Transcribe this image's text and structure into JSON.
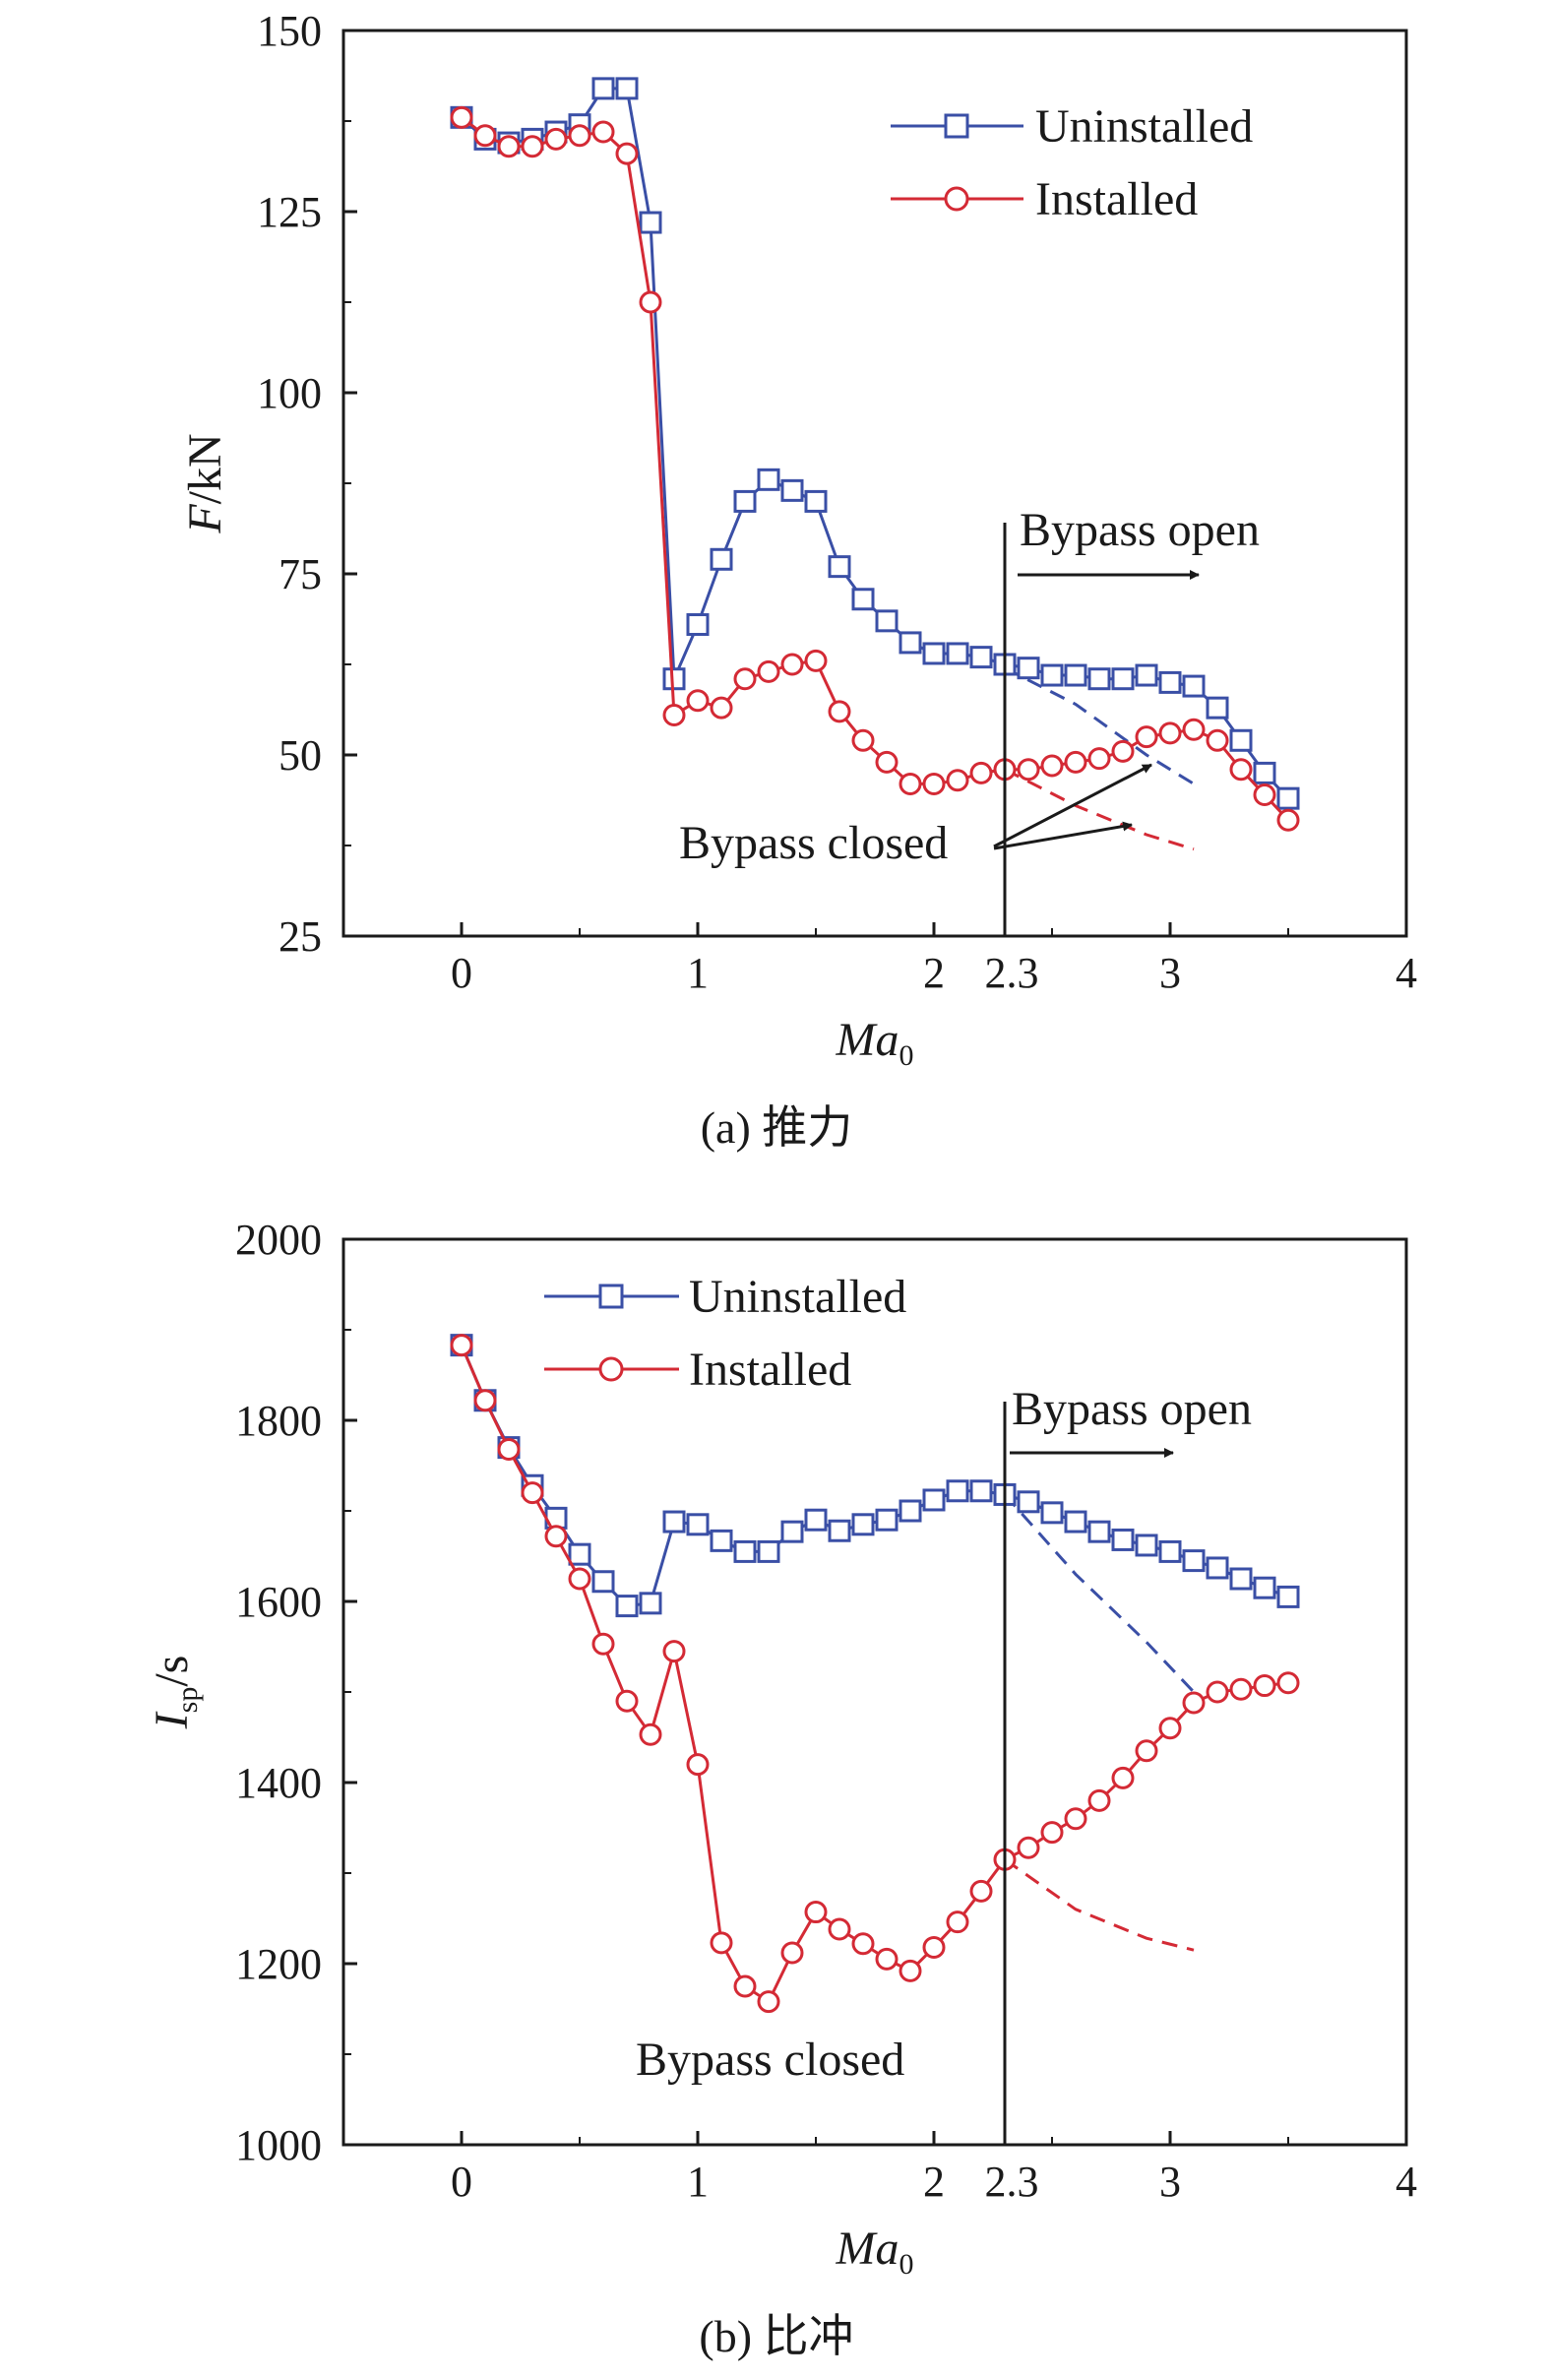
{
  "colors": {
    "uninstalled": "#3a4fa6",
    "installed": "#d42a35",
    "axis": "#1a1a1a"
  },
  "chart_data": [
    {
      "id": "a",
      "type": "line",
      "caption": "(a) 推力",
      "ylabel_main": "F",
      "ylabel_unit": "/kN",
      "xlabel_main": "Ma",
      "xlabel_sub": "0",
      "xlim": [
        -0.5,
        4
      ],
      "ylim": [
        25,
        150
      ],
      "xticks": [
        0,
        1,
        2,
        3,
        4
      ],
      "yticks": [
        25,
        50,
        75,
        100,
        125,
        150
      ],
      "xtick_labels": [
        "0",
        "1",
        "2",
        "3",
        "4"
      ],
      "ytick_labels": [
        "25",
        "50",
        "75",
        "100",
        "125",
        "150"
      ],
      "vline": {
        "x": 2.3,
        "label": "2.3"
      },
      "legend": {
        "position": "top-right",
        "entries": [
          "Uninstalled",
          "Installed"
        ]
      },
      "annotations": {
        "open": "Bypass open",
        "closed": "Bypass closed"
      },
      "series": [
        {
          "name": "Uninstalled",
          "marker": "square",
          "x": [
            0,
            0.1,
            0.2,
            0.3,
            0.4,
            0.5,
            0.6,
            0.7,
            0.8,
            0.9,
            1.0,
            1.1,
            1.2,
            1.3,
            1.4,
            1.5,
            1.6,
            1.7,
            1.8,
            1.9,
            2.0,
            2.1,
            2.2,
            2.3,
            2.4,
            2.5,
            2.6,
            2.7,
            2.8,
            2.9,
            3.0,
            3.1,
            3.2,
            3.3,
            3.4,
            3.5
          ],
          "values": [
            138,
            135,
            134.5,
            135,
            136,
            137,
            142,
            142,
            123.5,
            60.5,
            68,
            77,
            85,
            88,
            86.5,
            85,
            76,
            71.5,
            68.5,
            65.5,
            64,
            64,
            63.5,
            62.5,
            62,
            61,
            61,
            60.5,
            60.5,
            61,
            60,
            59.5,
            56.5,
            52,
            47.5,
            44
          ]
        },
        {
          "name": "Installed",
          "marker": "circle",
          "x": [
            0,
            0.1,
            0.2,
            0.3,
            0.4,
            0.5,
            0.6,
            0.7,
            0.8,
            0.9,
            1.0,
            1.1,
            1.2,
            1.3,
            1.4,
            1.5,
            1.6,
            1.7,
            1.8,
            1.9,
            2.0,
            2.1,
            2.2,
            2.3,
            2.4,
            2.5,
            2.6,
            2.7,
            2.8,
            2.9,
            3.0,
            3.1,
            3.2,
            3.3,
            3.4,
            3.5
          ],
          "values": [
            138,
            135.5,
            134,
            134,
            135,
            135.5,
            136,
            133,
            112.5,
            55.5,
            57.5,
            56.5,
            60.5,
            61.5,
            62.5,
            63,
            56,
            52,
            49,
            46,
            46,
            46.5,
            47.5,
            48,
            48,
            48.5,
            49,
            49.5,
            50.5,
            52.5,
            53,
            53.5,
            52,
            48,
            44.5,
            41
          ]
        },
        {
          "name": "Uninstalled (bypass closed)",
          "style": "dashed",
          "x": [
            2.3,
            2.6,
            2.9,
            3.1
          ],
          "values": [
            62,
            57,
            50,
            46
          ]
        },
        {
          "name": "Installed (bypass closed)",
          "style": "dashed",
          "x": [
            2.3,
            2.6,
            2.9,
            3.1
          ],
          "values": [
            48,
            43,
            39,
            37
          ]
        }
      ]
    },
    {
      "id": "b",
      "type": "line",
      "caption": "(b) 比冲",
      "ylabel_main": "I",
      "ylabel_sub": "sp",
      "ylabel_unit": "/s",
      "xlabel_main": "Ma",
      "xlabel_sub": "0",
      "xlim": [
        -0.5,
        4
      ],
      "ylim": [
        1000,
        2000
      ],
      "xticks": [
        0,
        1,
        2,
        3,
        4
      ],
      "yticks": [
        1000,
        1200,
        1400,
        1600,
        1800,
        2000
      ],
      "xtick_labels": [
        "0",
        "1",
        "2",
        "3",
        "4"
      ],
      "ytick_labels": [
        "1000",
        "1200",
        "1400",
        "1600",
        "1800",
        "2000"
      ],
      "vline": {
        "x": 2.3,
        "label": "2.3"
      },
      "legend": {
        "position": "top-left",
        "entries": [
          "Uninstalled",
          "Installed"
        ]
      },
      "annotations": {
        "open": "Bypass open",
        "closed": "Bypass closed"
      },
      "series": [
        {
          "name": "Uninstalled",
          "marker": "square",
          "x": [
            0,
            0.1,
            0.2,
            0.3,
            0.4,
            0.5,
            0.6,
            0.7,
            0.8,
            0.9,
            1.0,
            1.1,
            1.2,
            1.3,
            1.4,
            1.5,
            1.6,
            1.7,
            1.8,
            1.9,
            2.0,
            2.1,
            2.2,
            2.3,
            2.4,
            2.5,
            2.6,
            2.7,
            2.8,
            2.9,
            3.0,
            3.1,
            3.2,
            3.3,
            3.4,
            3.5
          ],
          "values": [
            1883,
            1822,
            1770,
            1728,
            1692,
            1652,
            1622,
            1595,
            1598,
            1688,
            1685,
            1667,
            1655,
            1655,
            1677,
            1690,
            1678,
            1685,
            1690,
            1700,
            1712,
            1722,
            1722,
            1718,
            1710,
            1698,
            1688,
            1677,
            1668,
            1662,
            1655,
            1645,
            1637,
            1625,
            1615,
            1605
          ]
        },
        {
          "name": "Installed",
          "marker": "circle",
          "x": [
            0,
            0.1,
            0.2,
            0.3,
            0.4,
            0.5,
            0.6,
            0.7,
            0.8,
            0.9,
            1.0,
            1.1,
            1.2,
            1.3,
            1.4,
            1.5,
            1.6,
            1.7,
            1.8,
            1.9,
            2.0,
            2.1,
            2.2,
            2.3,
            2.4,
            2.5,
            2.6,
            2.7,
            2.8,
            2.9,
            3.0,
            3.1,
            3.2,
            3.3,
            3.4,
            3.5
          ],
          "values": [
            1883,
            1822,
            1768,
            1720,
            1672,
            1625,
            1553,
            1490,
            1453,
            1545,
            1420,
            1223,
            1175,
            1158,
            1212,
            1257,
            1238,
            1222,
            1205,
            1192,
            1218,
            1246,
            1280,
            1315,
            1328,
            1345,
            1360,
            1380,
            1405,
            1435,
            1460,
            1488,
            1500,
            1503,
            1507,
            1510
          ]
        },
        {
          "name": "Uninstalled (bypass closed)",
          "style": "dashed",
          "x": [
            2.3,
            2.6,
            2.9,
            3.1
          ],
          "values": [
            1718,
            1630,
            1555,
            1500
          ]
        },
        {
          "name": "Installed (bypass closed)",
          "style": "dashed",
          "x": [
            2.3,
            2.6,
            2.9,
            3.1
          ],
          "values": [
            1315,
            1260,
            1228,
            1215
          ]
        }
      ]
    }
  ]
}
